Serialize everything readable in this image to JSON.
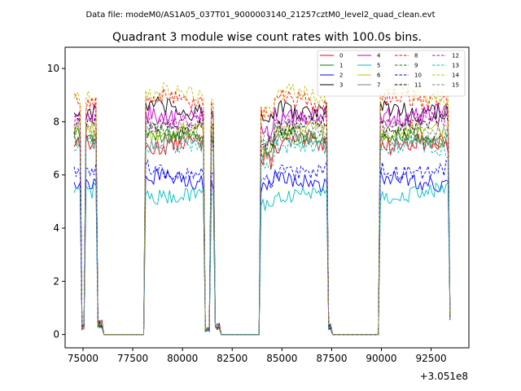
{
  "chart_data": {
    "type": "line",
    "suptitle": "Data file: modeM0/AS1A05_037T01_9000003140_21257cztM0_level2_quad_clean.evt",
    "title": "Quadrant 3 module wise count rates with 100.0s bins.",
    "xlabel": "",
    "ylabel": "",
    "offset_text": "+3.051e8",
    "xlim": [
      74100,
      94400
    ],
    "ylim": [
      -0.5,
      10.8
    ],
    "xticks": [
      75000,
      77500,
      80000,
      82500,
      85000,
      87500,
      90000,
      92500
    ],
    "xtick_labels": [
      "75000",
      "77500",
      "80000",
      "82500",
      "85000",
      "87500",
      "90000",
      "92500"
    ],
    "yticks": [
      0,
      2,
      4,
      6,
      8,
      10
    ],
    "ytick_labels": [
      "0",
      "2",
      "4",
      "6",
      "8",
      "10"
    ],
    "legend_position": "top-right",
    "x_start": 74550,
    "x_end": 93450,
    "bin_step": 100,
    "segments": [
      {
        "from": 74550,
        "to": 74850,
        "kind": "data"
      },
      {
        "from": 74950,
        "to": 75050,
        "kind": "dip",
        "value": 0.3
      },
      {
        "from": 75150,
        "to": 75650,
        "kind": "data"
      },
      {
        "from": 75750,
        "to": 75950,
        "kind": "dip",
        "value": 0.4
      },
      {
        "from": 76050,
        "to": 78050,
        "kind": "zero"
      },
      {
        "from": 78150,
        "to": 81050,
        "kind": "data"
      },
      {
        "from": 81150,
        "to": 81350,
        "kind": "dip",
        "value": 0.2
      },
      {
        "from": 81450,
        "to": 81550,
        "kind": "data"
      },
      {
        "from": 81650,
        "to": 81850,
        "kind": "dip",
        "value": 0.3
      },
      {
        "from": 81950,
        "to": 83850,
        "kind": "zero"
      },
      {
        "from": 83950,
        "to": 87250,
        "kind": "data"
      },
      {
        "from": 87350,
        "to": 87450,
        "kind": "dip",
        "value": 0.3
      },
      {
        "from": 87550,
        "to": 89850,
        "kind": "zero"
      },
      {
        "from": 89950,
        "to": 93350,
        "kind": "data"
      },
      {
        "from": 93450,
        "to": 93450,
        "kind": "dip",
        "value": 0.8
      }
    ],
    "series": [
      {
        "name": "0",
        "color": "#ff0000",
        "dash": "solid",
        "mean": 7.1,
        "noise": 0.35
      },
      {
        "name": "1",
        "color": "#008000",
        "dash": "solid",
        "mean": 7.4,
        "noise": 0.3
      },
      {
        "name": "2",
        "color": "#0000ff",
        "dash": "solid",
        "mean": 5.8,
        "noise": 0.3
      },
      {
        "name": "3",
        "color": "#000000",
        "dash": "solid",
        "mean": 8.5,
        "noise": 0.35
      },
      {
        "name": "4",
        "color": "#bf00bf",
        "dash": "solid",
        "mean": 8.3,
        "noise": 0.35
      },
      {
        "name": "5",
        "color": "#00bfbf",
        "dash": "solid",
        "mean": 5.3,
        "noise": 0.3
      },
      {
        "name": "6",
        "color": "#bfbf00",
        "dash": "solid",
        "mean": 7.6,
        "noise": 0.3
      },
      {
        "name": "7",
        "color": "#808080",
        "dash": "solid",
        "mean": 7.2,
        "noise": 0.3
      },
      {
        "name": "8",
        "color": "#ff0000",
        "dash": "dashed",
        "mean": 8.8,
        "noise": 0.35
      },
      {
        "name": "9",
        "color": "#008000",
        "dash": "dashed",
        "mean": 7.5,
        "noise": 0.3
      },
      {
        "name": "10",
        "color": "#0000ff",
        "dash": "dashed",
        "mean": 6.2,
        "noise": 0.3
      },
      {
        "name": "11",
        "color": "#000000",
        "dash": "dashed",
        "mean": 7.9,
        "noise": 0.3
      },
      {
        "name": "12",
        "color": "#bf00bf",
        "dash": "dashed",
        "mean": 8.0,
        "noise": 0.3
      },
      {
        "name": "13",
        "color": "#00bfbf",
        "dash": "dashed",
        "mean": 7.0,
        "noise": 0.3
      },
      {
        "name": "14",
        "color": "#bfbf00",
        "dash": "dashed",
        "mean": 9.0,
        "noise": 0.35
      },
      {
        "name": "15",
        "color": "#808080",
        "dash": "dashed",
        "mean": 7.8,
        "noise": 0.3
      }
    ]
  }
}
